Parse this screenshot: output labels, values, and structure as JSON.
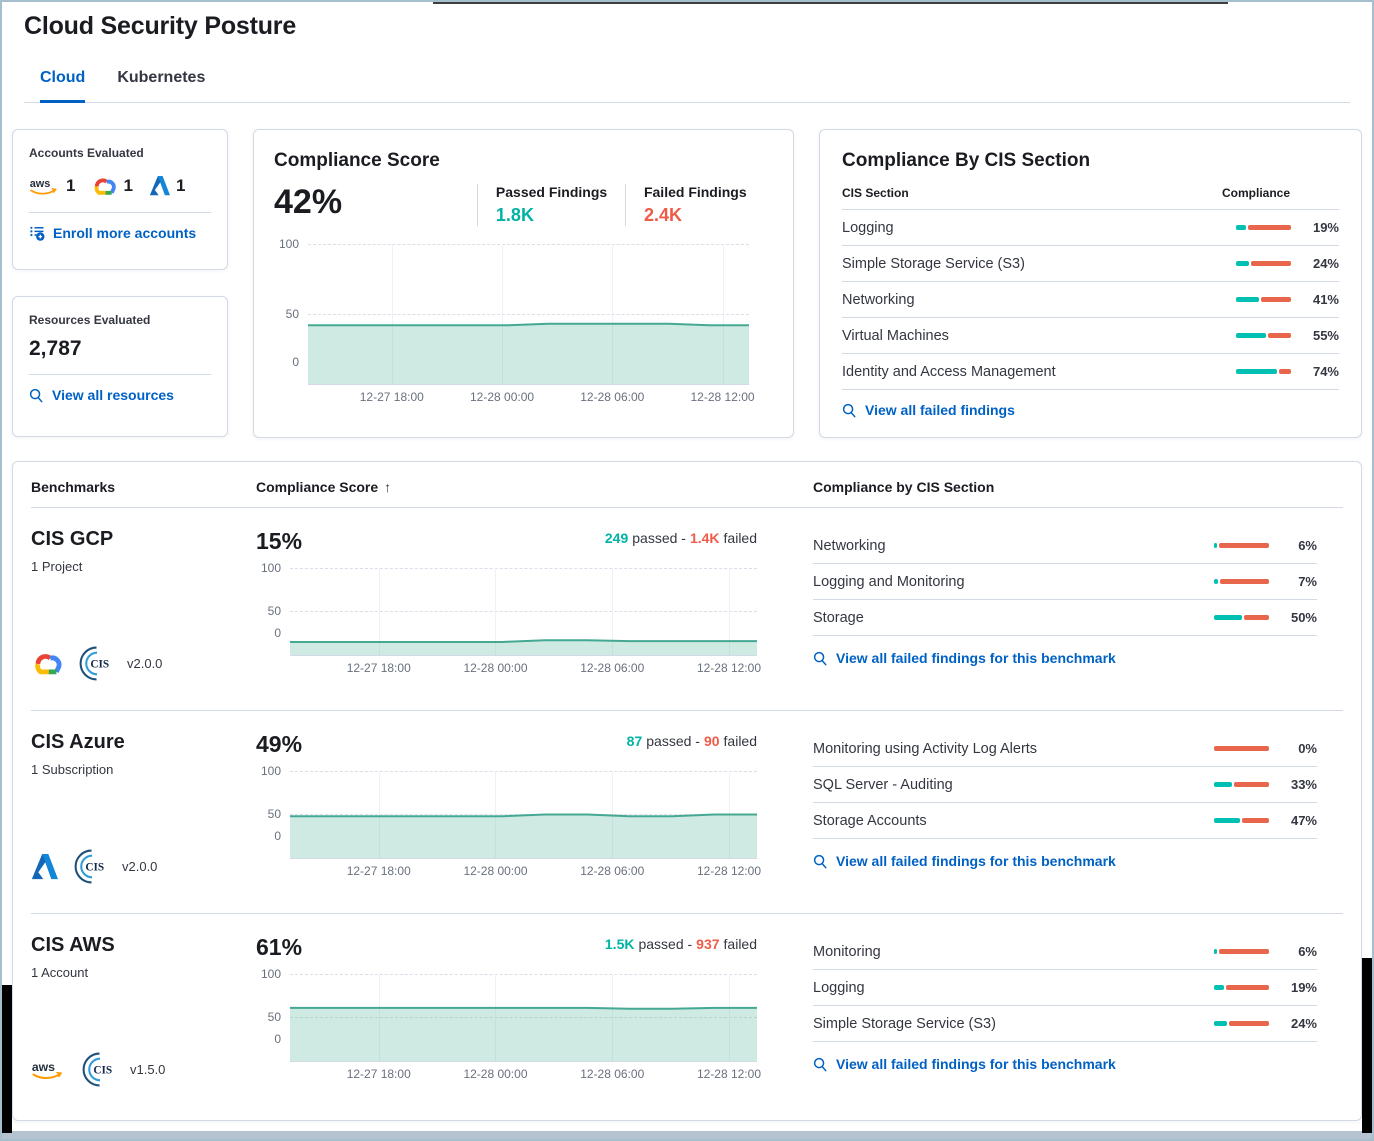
{
  "header": {
    "title": "Cloud Security Posture"
  },
  "tabs": {
    "cloud": "Cloud",
    "kubernetes": "Kubernetes"
  },
  "accounts_card": {
    "title": "Accounts Evaluated",
    "aws_count": "1",
    "gcp_count": "1",
    "azure_count": "1",
    "enroll_link": "Enroll more accounts"
  },
  "resources_card": {
    "title": "Resources Evaluated",
    "count": "2,787",
    "view_link": "View all resources"
  },
  "score_card": {
    "title": "Compliance Score",
    "score": "42%",
    "passed_label": "Passed Findings",
    "passed_value": "1.8K",
    "failed_label": "Failed Findings",
    "failed_value": "2.4K"
  },
  "cis_card": {
    "title": "Compliance By CIS Section",
    "col_section": "CIS Section",
    "col_compliance": "Compliance",
    "rows": [
      {
        "label": "Logging",
        "pct": 19,
        "pct_label": "19%"
      },
      {
        "label": "Simple Storage Service (S3)",
        "pct": 24,
        "pct_label": "24%"
      },
      {
        "label": "Networking",
        "pct": 41,
        "pct_label": "41%"
      },
      {
        "label": "Virtual Machines",
        "pct": 55,
        "pct_label": "55%"
      },
      {
        "label": "Identity and Access Management",
        "pct": 74,
        "pct_label": "74%"
      }
    ],
    "link": "View all failed findings"
  },
  "benchmarks": {
    "col_benchmarks": "Benchmarks",
    "col_score": "Compliance Score",
    "sort_arrow": "↑",
    "col_sections": "Compliance by CIS Section",
    "rows": [
      {
        "name": "CIS GCP",
        "scope": "1 Project",
        "provider": "gcp",
        "version": "v2.0.0",
        "score": "15%",
        "passed_value": "249",
        "passed_word": "passed -",
        "failed_value": "1.4K",
        "failed_word": "failed",
        "sections": [
          {
            "label": "Networking",
            "pct": 6,
            "pct_label": "6%"
          },
          {
            "label": "Logging and Monitoring",
            "pct": 7,
            "pct_label": "7%"
          },
          {
            "label": "Storage",
            "pct": 50,
            "pct_label": "50%"
          }
        ],
        "link": "View all failed findings for this benchmark"
      },
      {
        "name": "CIS Azure",
        "scope": "1 Subscription",
        "provider": "azure",
        "version": "v2.0.0",
        "score": "49%",
        "passed_value": "87",
        "passed_word": "passed -",
        "failed_value": "90",
        "failed_word": "failed",
        "sections": [
          {
            "label": "Monitoring using Activity Log Alerts",
            "pct": 0,
            "pct_label": "0%"
          },
          {
            "label": "SQL Server - Auditing",
            "pct": 33,
            "pct_label": "33%"
          },
          {
            "label": "Storage Accounts",
            "pct": 47,
            "pct_label": "47%"
          }
        ],
        "link": "View all failed findings for this benchmark"
      },
      {
        "name": "CIS AWS",
        "scope": "1 Account",
        "provider": "aws",
        "version": "v1.5.0",
        "score": "61%",
        "passed_value": "1.5K",
        "passed_word": "passed -",
        "failed_value": "937",
        "failed_word": "failed",
        "sections": [
          {
            "label": "Monitoring",
            "pct": 6,
            "pct_label": "6%"
          },
          {
            "label": "Logging",
            "pct": 19,
            "pct_label": "19%"
          },
          {
            "label": "Simple Storage Service (S3)",
            "pct": 24,
            "pct_label": "24%"
          }
        ],
        "link": "View all failed findings for this benchmark"
      }
    ]
  },
  "chart_data": [
    {
      "id": "overall-compliance-trend",
      "type": "area",
      "title": "Compliance Score trend",
      "x_ticks": [
        "12-27 18:00",
        "12-28 00:00",
        "12-28 06:00",
        "12-28 12:00"
      ],
      "y_ticks": [
        "100",
        "50",
        "0"
      ],
      "ylim": [
        0,
        100
      ],
      "values": [
        42,
        42,
        42,
        42,
        42,
        42,
        43,
        43,
        43,
        43,
        42,
        42
      ]
    },
    {
      "id": "cis-gcp-trend",
      "type": "area",
      "title": "CIS GCP compliance trend",
      "x_ticks": [
        "12-27 18:00",
        "12-28 00:00",
        "12-28 06:00",
        "12-28 12:00"
      ],
      "y_ticks": [
        "100",
        "50",
        "0"
      ],
      "ylim": [
        0,
        100
      ],
      "values": [
        15,
        15,
        15,
        15,
        15,
        15,
        17,
        17,
        16,
        16,
        16,
        16
      ]
    },
    {
      "id": "cis-azure-trend",
      "type": "area",
      "title": "CIS Azure compliance trend",
      "x_ticks": [
        "12-27 18:00",
        "12-28 00:00",
        "12-28 06:00",
        "12-28 12:00"
      ],
      "y_ticks": [
        "100",
        "50",
        "0"
      ],
      "ylim": [
        0,
        100
      ],
      "values": [
        48,
        48,
        48,
        48,
        48,
        48,
        50,
        50,
        48,
        48,
        50,
        50
      ]
    },
    {
      "id": "cis-aws-trend",
      "type": "area",
      "title": "CIS AWS compliance trend",
      "x_ticks": [
        "12-27 18:00",
        "12-28 00:00",
        "12-28 06:00",
        "12-28 12:00"
      ],
      "y_ticks": [
        "100",
        "50",
        "0"
      ],
      "ylim": [
        0,
        100
      ],
      "values": [
        61,
        61,
        61,
        61,
        61,
        61,
        61,
        61,
        60,
        60,
        61,
        61
      ]
    }
  ],
  "colors": {
    "primary_blue": "#0061c5",
    "teal_bar": "#00bfb3",
    "red_bar": "#e7664c",
    "teal_text": "#00b3a4",
    "red_text": "#ee5c48",
    "chart_line": "#45a892",
    "chart_fill": "rgba(84,179,153,0.28)"
  }
}
